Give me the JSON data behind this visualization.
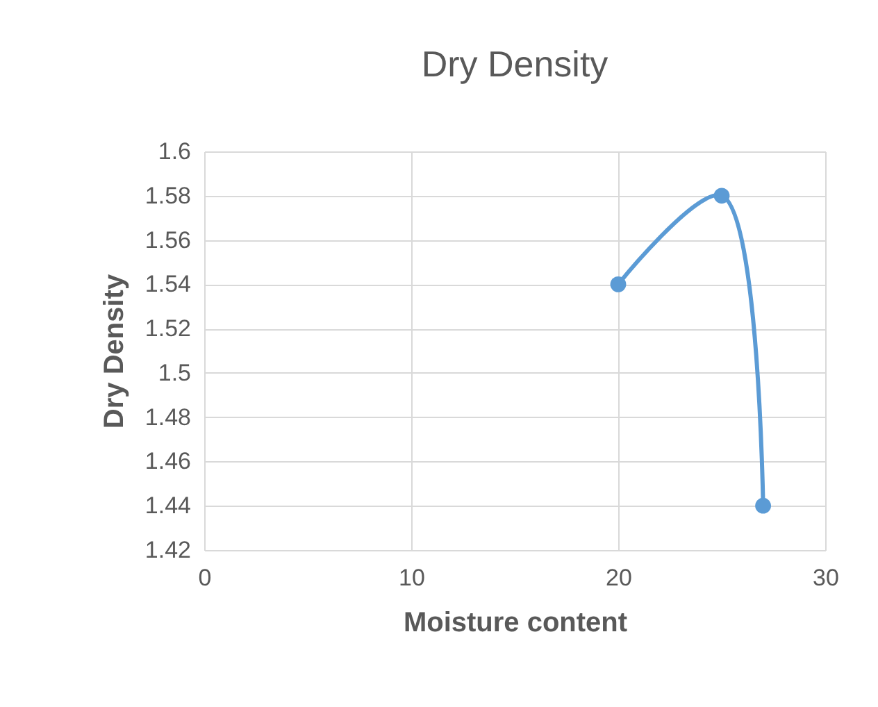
{
  "chart_data": {
    "type": "line",
    "title": "Dry Density",
    "xlabel": "Moisture content",
    "ylabel": "Dry Density",
    "x": [
      20,
      25,
      27
    ],
    "series": [
      {
        "color": "#5b9bd5",
        "values": [
          1.54,
          1.58,
          1.44
        ]
      }
    ],
    "xlim": [
      0,
      30
    ],
    "xticks": [
      0,
      10,
      20,
      30
    ],
    "ylim": [
      1.42,
      1.6
    ],
    "yticks": [
      1.42,
      1.44,
      1.46,
      1.48,
      1.5,
      1.52,
      1.54,
      1.56,
      1.58,
      1.6
    ],
    "grid": true,
    "marker": "circle",
    "line_style": "solid"
  }
}
